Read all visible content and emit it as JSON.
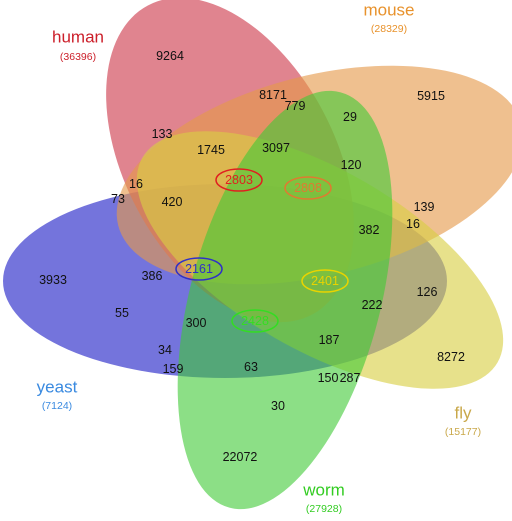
{
  "colors": {
    "human": "#d24a5a",
    "mouse": "#e59a4a",
    "fly": "#d8cf44",
    "worm": "#3fc936",
    "yeast": "#3f3fcf",
    "human_label": "#cc1f2a",
    "mouse_label": "#e8922c",
    "fly_label": "#c9a84a",
    "worm_label": "#33cc22",
    "yeast_label": "#3a8ae0"
  },
  "sets": {
    "human": {
      "name": "human",
      "total": "(36396)"
    },
    "mouse": {
      "name": "mouse",
      "total": "(28329)"
    },
    "fly": {
      "name": "fly",
      "total": "(15177)"
    },
    "worm": {
      "name": "worm",
      "total": "(27928)"
    },
    "yeast": {
      "name": "yeast",
      "total": "(7124)"
    }
  },
  "regions": [
    "9264",
    "5915",
    "8272",
    "22072",
    "3933",
    "8171",
    "779",
    "29",
    "133",
    "1745",
    "3097",
    "120",
    "16",
    "73",
    "420",
    "382",
    "16",
    "139",
    "386",
    "126",
    "55",
    "300",
    "222",
    "187",
    "34",
    "159",
    "63",
    "150",
    "287",
    "30"
  ],
  "highlights": [
    {
      "value": "2803",
      "color": "#e02020"
    },
    {
      "value": "2808",
      "color": "#e07a30"
    },
    {
      "value": "2161",
      "color": "#3030c8"
    },
    {
      "value": "2401",
      "color": "#e8d400"
    },
    {
      "value": "2428",
      "color": "#33dd22"
    }
  ]
}
